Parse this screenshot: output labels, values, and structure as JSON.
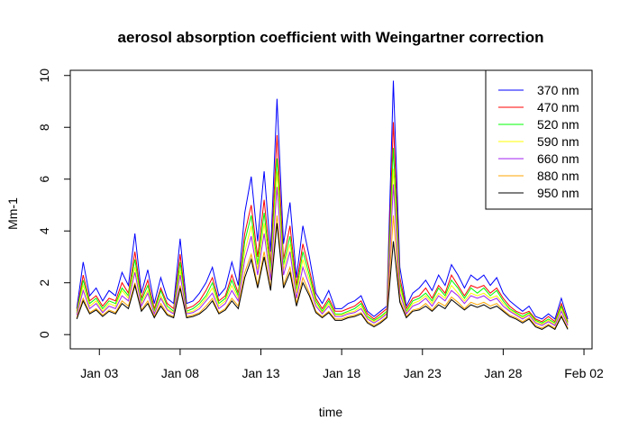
{
  "chart_data": {
    "type": "line",
    "title": "aerosol absorption coefficient with Weingartner correction",
    "xlabel": "time",
    "ylabel": "Mm-1",
    "x_ticks": [
      "Jan 03",
      "Jan 08",
      "Jan 13",
      "Jan 18",
      "Jan 23",
      "Jan 28",
      "Feb 02"
    ],
    "x_tick_days": [
      3,
      8,
      13,
      18,
      23,
      28,
      33
    ],
    "x_range_days": [
      1.2,
      33.5
    ],
    "y_ticks": [
      "0",
      "2",
      "4",
      "6",
      "8",
      "10"
    ],
    "ylim": [
      -0.55,
      10.2
    ],
    "legend_position": "top-right",
    "grid": false,
    "x_days": [
      1.6,
      2.0,
      2.4,
      2.8,
      3.2,
      3.6,
      4.0,
      4.4,
      4.8,
      5.2,
      5.6,
      6.0,
      6.4,
      6.8,
      7.2,
      7.6,
      8.0,
      8.4,
      8.8,
      9.2,
      9.6,
      10.0,
      10.4,
      10.8,
      11.2,
      11.6,
      12.0,
      12.4,
      12.8,
      13.2,
      13.6,
      14.0,
      14.4,
      14.8,
      15.2,
      15.6,
      16.0,
      16.4,
      16.8,
      17.2,
      17.6,
      18.0,
      18.4,
      18.8,
      19.2,
      19.6,
      20.0,
      20.4,
      20.8,
      21.2,
      21.6,
      22.0,
      22.4,
      22.8,
      23.2,
      23.6,
      24.0,
      24.4,
      24.8,
      25.2,
      25.6,
      26.0,
      26.4,
      26.8,
      27.2,
      27.6,
      28.0,
      28.4,
      28.8,
      29.2,
      29.6,
      30.0,
      30.4,
      30.8,
      31.2,
      31.6,
      32.0
    ],
    "series": [
      {
        "name": "370 nm",
        "color": "#0000ff",
        "values": [
          1.0,
          2.8,
          1.5,
          1.8,
          1.3,
          1.7,
          1.5,
          2.4,
          1.9,
          3.9,
          1.6,
          2.5,
          1.2,
          2.2,
          1.4,
          1.2,
          3.7,
          1.2,
          1.3,
          1.6,
          2.0,
          2.6,
          1.5,
          1.8,
          2.8,
          1.9,
          4.7,
          6.1,
          3.6,
          6.3,
          3.2,
          9.1,
          3.5,
          5.1,
          2.2,
          4.2,
          3.0,
          1.6,
          1.2,
          1.7,
          1.0,
          1.0,
          1.2,
          1.3,
          1.5,
          0.9,
          0.7,
          0.9,
          1.1,
          9.8,
          2.6,
          1.1,
          1.6,
          1.8,
          2.1,
          1.7,
          2.3,
          1.9,
          2.7,
          2.3,
          1.8,
          2.3,
          2.1,
          2.3,
          1.9,
          2.2,
          1.6,
          1.3,
          1.1,
          0.9,
          1.1,
          0.7,
          0.6,
          0.8,
          0.6,
          1.4,
          0.6
        ]
      },
      {
        "name": "470 nm",
        "color": "#ff0000",
        "values": [
          0.9,
          2.3,
          1.3,
          1.5,
          1.1,
          1.4,
          1.3,
          2.0,
          1.6,
          3.2,
          1.4,
          2.1,
          1.0,
          1.8,
          1.2,
          1.0,
          3.1,
          1.0,
          1.1,
          1.3,
          1.7,
          2.2,
          1.3,
          1.5,
          2.3,
          1.6,
          3.9,
          5.0,
          3.0,
          5.2,
          2.7,
          7.7,
          2.9,
          4.2,
          1.9,
          3.5,
          2.5,
          1.4,
          1.0,
          1.4,
          0.9,
          0.9,
          1.0,
          1.1,
          1.3,
          0.8,
          0.6,
          0.8,
          1.0,
          8.2,
          2.2,
          1.0,
          1.4,
          1.5,
          1.8,
          1.4,
          1.9,
          1.6,
          2.3,
          1.9,
          1.5,
          1.9,
          1.8,
          1.9,
          1.6,
          1.8,
          1.4,
          1.1,
          0.9,
          0.8,
          0.9,
          0.6,
          0.5,
          0.7,
          0.5,
          1.2,
          0.5
        ]
      },
      {
        "name": "520 nm",
        "color": "#00ff00",
        "values": [
          0.85,
          2.1,
          1.2,
          1.4,
          1.0,
          1.3,
          1.2,
          1.8,
          1.5,
          2.9,
          1.3,
          1.9,
          0.9,
          1.7,
          1.1,
          0.9,
          2.8,
          0.9,
          1.0,
          1.2,
          1.5,
          2.0,
          1.2,
          1.4,
          2.1,
          1.5,
          3.6,
          4.6,
          2.7,
          4.7,
          2.5,
          6.8,
          2.7,
          3.8,
          1.7,
          3.2,
          2.3,
          1.3,
          0.9,
          1.3,
          0.8,
          0.8,
          0.9,
          1.0,
          1.2,
          0.7,
          0.55,
          0.7,
          0.9,
          7.2,
          2.0,
          0.9,
          1.3,
          1.4,
          1.6,
          1.3,
          1.8,
          1.5,
          2.1,
          1.8,
          1.4,
          1.8,
          1.6,
          1.8,
          1.5,
          1.7,
          1.3,
          1.0,
          0.85,
          0.7,
          0.85,
          0.55,
          0.45,
          0.6,
          0.45,
          1.1,
          0.45
        ]
      },
      {
        "name": "590 nm",
        "color": "#ffff00",
        "values": [
          0.8,
          1.9,
          1.1,
          1.3,
          0.9,
          1.2,
          1.1,
          1.7,
          1.4,
          2.6,
          1.2,
          1.7,
          0.85,
          1.5,
          1.0,
          0.85,
          2.5,
          0.85,
          0.9,
          1.1,
          1.4,
          1.8,
          1.1,
          1.3,
          1.9,
          1.4,
          3.2,
          4.2,
          2.5,
          4.3,
          2.3,
          6.3,
          2.5,
          3.5,
          1.6,
          2.9,
          2.1,
          1.2,
          0.85,
          1.2,
          0.75,
          0.75,
          0.85,
          0.9,
          1.1,
          0.65,
          0.5,
          0.65,
          0.85,
          6.4,
          1.8,
          0.85,
          1.2,
          1.3,
          1.5,
          1.2,
          1.6,
          1.4,
          1.9,
          1.6,
          1.3,
          1.6,
          1.5,
          1.6,
          1.4,
          1.5,
          1.2,
          0.95,
          0.8,
          0.65,
          0.8,
          0.5,
          0.4,
          0.55,
          0.4,
          1.0,
          0.4
        ]
      },
      {
        "name": "660 nm",
        "color": "#a020f0",
        "values": [
          0.75,
          1.7,
          1.0,
          1.2,
          0.85,
          1.1,
          1.0,
          1.5,
          1.3,
          2.4,
          1.1,
          1.6,
          0.8,
          1.4,
          0.95,
          0.8,
          2.3,
          0.8,
          0.85,
          1.0,
          1.3,
          1.6,
          1.0,
          1.2,
          1.7,
          1.3,
          2.9,
          3.8,
          2.3,
          3.9,
          2.1,
          5.7,
          2.3,
          3.2,
          1.4,
          2.6,
          1.9,
          1.1,
          0.8,
          1.1,
          0.7,
          0.7,
          0.8,
          0.85,
          1.0,
          0.6,
          0.45,
          0.6,
          0.8,
          5.8,
          1.6,
          0.8,
          1.1,
          1.2,
          1.4,
          1.1,
          1.5,
          1.3,
          1.7,
          1.5,
          1.2,
          1.5,
          1.4,
          1.5,
          1.3,
          1.4,
          1.1,
          0.9,
          0.75,
          0.6,
          0.75,
          0.45,
          0.35,
          0.5,
          0.35,
          0.9,
          0.35
        ]
      },
      {
        "name": "880 nm",
        "color": "#ffa500",
        "values": [
          0.65,
          1.4,
          0.85,
          1.0,
          0.75,
          0.95,
          0.85,
          1.3,
          1.1,
          2.0,
          0.95,
          1.3,
          0.7,
          1.2,
          0.8,
          0.7,
          1.9,
          0.7,
          0.75,
          0.85,
          1.1,
          1.4,
          0.85,
          1.0,
          1.4,
          1.1,
          2.4,
          3.1,
          1.9,
          3.2,
          1.8,
          4.6,
          1.9,
          2.6,
          1.2,
          2.2,
          1.6,
          0.9,
          0.7,
          0.9,
          0.6,
          0.6,
          0.7,
          0.75,
          0.85,
          0.5,
          0.35,
          0.5,
          0.7,
          4.6,
          1.35,
          0.7,
          0.95,
          1.0,
          1.2,
          0.95,
          1.25,
          1.1,
          1.45,
          1.25,
          1.0,
          1.25,
          1.15,
          1.25,
          1.1,
          1.2,
          0.95,
          0.75,
          0.65,
          0.5,
          0.65,
          0.35,
          0.25,
          0.4,
          0.25,
          0.75,
          0.25
        ]
      },
      {
        "name": "950 nm",
        "color": "#000000",
        "values": [
          0.6,
          1.3,
          0.8,
          0.95,
          0.7,
          0.9,
          0.8,
          1.2,
          1.0,
          1.9,
          0.9,
          1.2,
          0.65,
          1.1,
          0.75,
          0.65,
          1.8,
          0.65,
          0.7,
          0.8,
          1.0,
          1.3,
          0.8,
          0.95,
          1.3,
          1.0,
          2.2,
          2.9,
          1.8,
          3.0,
          1.7,
          4.3,
          1.8,
          2.4,
          1.1,
          2.0,
          1.5,
          0.85,
          0.65,
          0.85,
          0.55,
          0.55,
          0.65,
          0.7,
          0.8,
          0.45,
          0.3,
          0.45,
          0.65,
          3.6,
          1.25,
          0.65,
          0.9,
          0.95,
          1.1,
          0.9,
          1.15,
          1.0,
          1.35,
          1.15,
          0.95,
          1.15,
          1.05,
          1.15,
          1.0,
          1.1,
          0.9,
          0.7,
          0.6,
          0.45,
          0.6,
          0.3,
          0.2,
          0.35,
          0.2,
          0.7,
          0.2
        ]
      }
    ]
  }
}
